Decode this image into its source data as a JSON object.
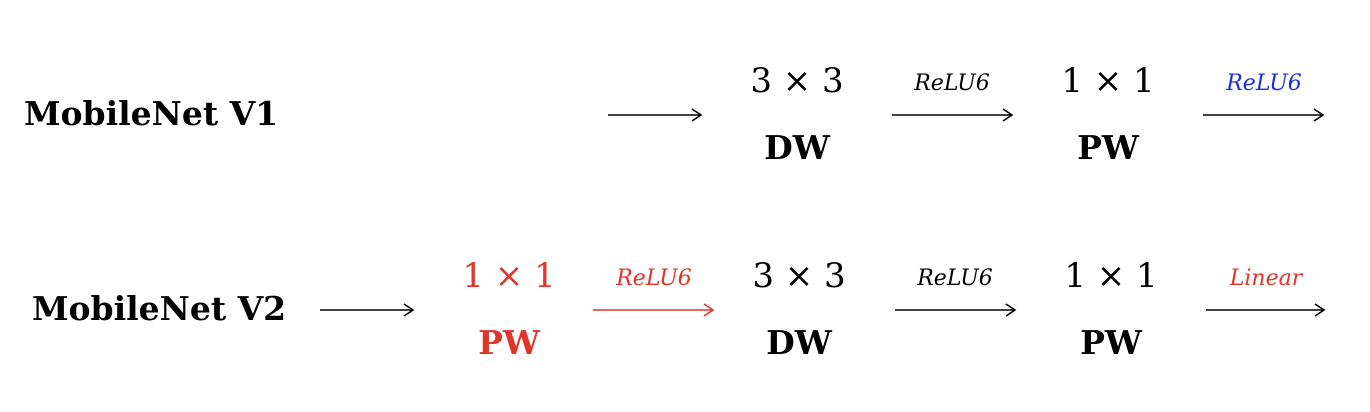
{
  "colors": {
    "default": "#000000",
    "highlight_red": "#e0352b",
    "highlight_blue": "#1a2fd8"
  },
  "rows": [
    {
      "label": "MobileNet V1",
      "blocks": [
        {
          "op": "3 × 3",
          "type": "DW",
          "color": "#000000"
        },
        {
          "op": "1 × 1",
          "type": "PW",
          "color": "#000000"
        }
      ],
      "activations": [
        {
          "text": "ReLU6",
          "color": "#000000"
        },
        {
          "text": "ReLU6",
          "color": "#1a2fd8"
        }
      ]
    },
    {
      "label": "MobileNet V2",
      "blocks": [
        {
          "op": "1 × 1",
          "type": "PW",
          "color": "#e0352b"
        },
        {
          "op": "3 × 3",
          "type": "DW",
          "color": "#000000"
        },
        {
          "op": "1 × 1",
          "type": "PW",
          "color": "#000000"
        }
      ],
      "activations": [
        {
          "text": "ReLU6",
          "color": "#e0352b"
        },
        {
          "text": "ReLU6",
          "color": "#000000"
        },
        {
          "text": "Linear",
          "color": "#e0352b"
        }
      ]
    }
  ]
}
